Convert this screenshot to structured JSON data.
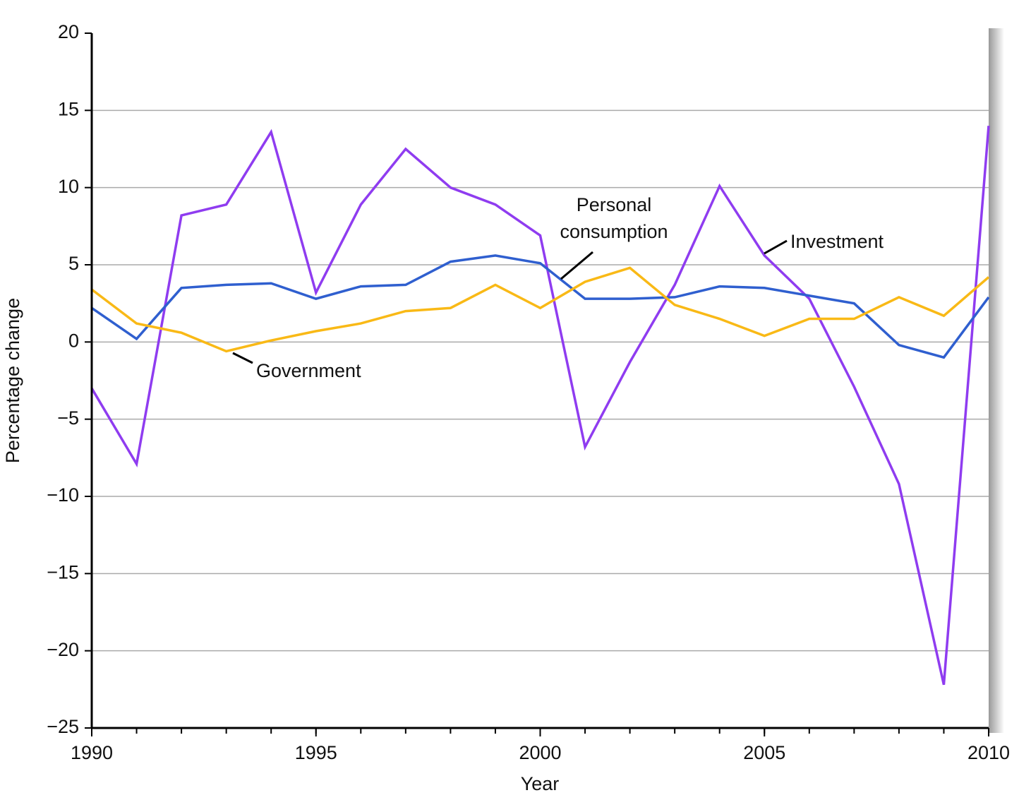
{
  "chart_data": {
    "type": "line",
    "x_label": "Year",
    "y_label": "Percentage change",
    "x": [
      1990,
      1991,
      1992,
      1993,
      1994,
      1995,
      1996,
      1997,
      1998,
      1999,
      2000,
      2001,
      2002,
      2003,
      2004,
      2005,
      2006,
      2007,
      2008,
      2009,
      2010
    ],
    "series": [
      {
        "name": "Investment",
        "color": "#8f3cf0",
        "values": [
          -3.0,
          -7.9,
          8.2,
          8.9,
          13.6,
          3.2,
          8.9,
          12.5,
          10.0,
          8.9,
          6.9,
          -6.8,
          -1.3,
          3.7,
          10.1,
          5.6,
          2.8,
          -2.9,
          -9.2,
          -22.2,
          14.0
        ]
      },
      {
        "name": "Personal consumption",
        "color": "#2f5fcf",
        "values": [
          2.2,
          0.2,
          3.5,
          3.7,
          3.8,
          2.8,
          3.6,
          3.7,
          5.2,
          5.6,
          5.1,
          2.8,
          2.8,
          2.9,
          3.6,
          3.5,
          3.0,
          2.5,
          -0.2,
          -1.0,
          2.9
        ]
      },
      {
        "name": "Government",
        "color": "#f9b916",
        "values": [
          3.4,
          1.2,
          0.6,
          -0.6,
          0.1,
          0.7,
          1.2,
          2.0,
          2.2,
          3.7,
          2.2,
          3.9,
          4.8,
          2.4,
          1.5,
          0.4,
          1.5,
          1.5,
          2.9,
          1.7,
          4.2
        ]
      }
    ],
    "xlim": [
      1990,
      2010
    ],
    "xticks": [
      1990,
      1995,
      2000,
      2005,
      2010
    ],
    "ylim": [
      -25,
      20
    ],
    "yticks": [
      {
        "value": -25,
        "label": "−25"
      },
      {
        "value": -20,
        "label": "−20"
      },
      {
        "value": -15,
        "label": "−15"
      },
      {
        "value": -10,
        "label": "−10"
      },
      {
        "value": -5,
        "label": "−5"
      },
      0,
      5,
      10,
      15,
      20
    ],
    "grid": true
  }
}
